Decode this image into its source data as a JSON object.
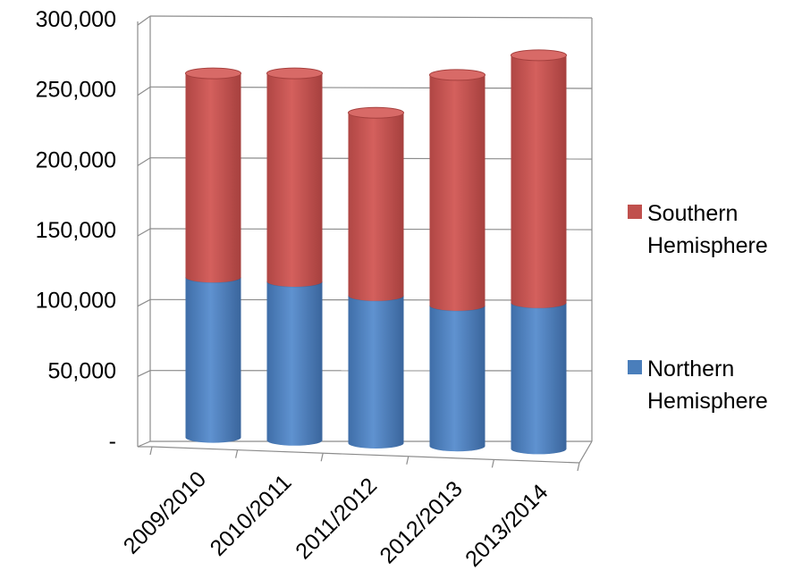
{
  "chart_data": {
    "type": "bar",
    "stacked": true,
    "style": "3d-cylinder",
    "title": "",
    "xlabel": "",
    "ylabel": "",
    "ylim": [
      0,
      300000
    ],
    "y_ticks": [
      0,
      50000,
      100000,
      150000,
      200000,
      250000,
      300000
    ],
    "y_tick_labels": [
      "-",
      "50,000",
      "100,000",
      "150,000",
      "200,000",
      "250,000",
      "300,000"
    ],
    "categories": [
      "2009/2010",
      "2010/2011",
      "2011/2012",
      "2012/2013",
      "2013/2014"
    ],
    "series": [
      {
        "name": "Northern Hemisphere",
        "color": "#4a7ebb",
        "values": [
          114000,
          113000,
          105000,
          100000,
          104000
        ]
      },
      {
        "name": "Southern Hemisphere",
        "color": "#c0504d",
        "values": [
          145000,
          148000,
          130000,
          164000,
          176000
        ]
      }
    ],
    "legend": {
      "position": "right",
      "entries": [
        {
          "lines": [
            "Southern",
            "Hemisphere"
          ],
          "color": "#c0504d"
        },
        {
          "lines": [
            "Northern",
            "Hemisphere"
          ],
          "color": "#4a7ebb"
        }
      ]
    },
    "grid": true
  }
}
